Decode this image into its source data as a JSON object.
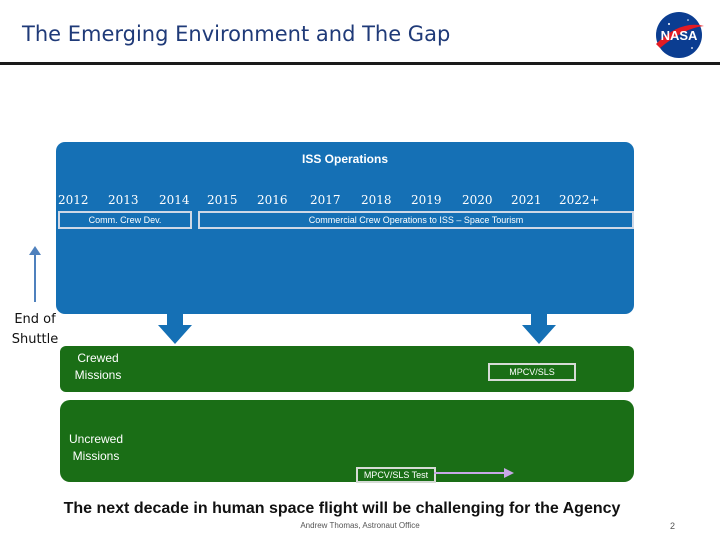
{
  "slide": {
    "title": "The Emerging Environment and The Gap",
    "logo_text": "NASA",
    "tagline": "The next decade in human space flight will be challenging for the Agency",
    "footer_author": "Andrew Thomas, Astronaut Office",
    "page_number": "2"
  },
  "iss": {
    "title": "ISS Operations",
    "years": [
      "2012",
      "2013",
      "2014",
      "2015",
      "2016",
      "2017",
      "2018",
      "2019",
      "2020",
      "2021",
      "2022+"
    ],
    "comm_crew_dev": "Comm. Crew Dev.",
    "commercial_ops": "Commercial Crew Operations to ISS – Space Tourism"
  },
  "end_of_shuttle": "End of Shuttle",
  "crewed": {
    "label": "Crewed Missions",
    "program": "MPCV/SLS"
  },
  "uncrewed": {
    "label": "Uncrewed Missions",
    "program": "MPCV/SLS Test"
  },
  "colors": {
    "title": "#1f3a78",
    "iss_blue": "#1570b5",
    "green": "#1a6e16",
    "arrow_blue": "#4f81bd"
  }
}
